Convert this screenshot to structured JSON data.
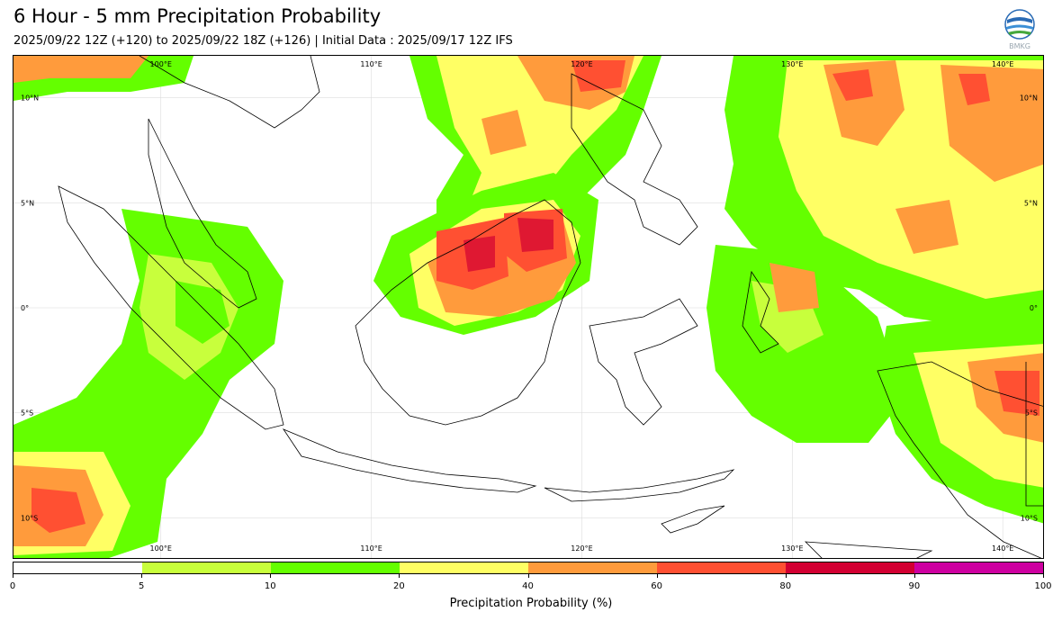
{
  "header": {
    "title": "6 Hour - 5 mm Precipitation Probability",
    "subtitle": "2025/09/22 12Z (+120) to 2025/09/22 18Z (+126) | Initial Data : 2025/09/17 12Z IFS",
    "logo_text": "BMKG"
  },
  "map": {
    "region": "Indonesia",
    "lon_labels_top": [
      "100°E",
      "110°E",
      "120°E",
      "130°E",
      "140°E"
    ],
    "lon_labels_bottom": [
      "100°E",
      "110°E",
      "120°E",
      "130°E",
      "140°E"
    ],
    "lat_labels_left": [
      "10°N",
      "5°N",
      "0°",
      "5°S",
      "10°S"
    ],
    "lat_labels_right": [
      "10°N",
      "5°N",
      "0°",
      "5°S",
      "10°S"
    ],
    "lon_range": [
      93,
      142
    ],
    "lat_range": [
      -12,
      12
    ],
    "lon_grid": [
      100,
      110,
      120,
      130,
      140
    ],
    "lat_grid": [
      10,
      5,
      0,
      -5,
      -10
    ]
  },
  "colorbar": {
    "label": "Precipitation Probability (%)",
    "ticks": [
      "0",
      "5",
      "10",
      "20",
      "40",
      "60",
      "80",
      "90",
      "100"
    ],
    "colors": [
      "#ffffff",
      "#c8ff3c",
      "#64ff00",
      "#ffff64",
      "#ff9b3c",
      "#ff5032",
      "#d20032",
      "#cd00a0"
    ]
  },
  "colors": {
    "land_outline": "#000000",
    "grid": "#dddddd"
  }
}
